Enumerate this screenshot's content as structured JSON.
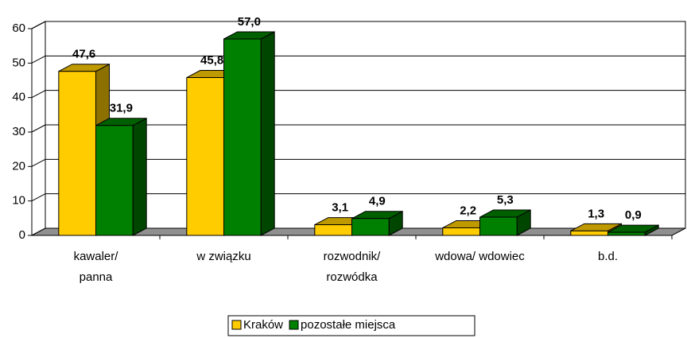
{
  "chart_data": {
    "type": "bar3d",
    "categories": [
      [
        "kawaler/",
        "panna"
      ],
      [
        "w związku"
      ],
      [
        "rozwodnik/",
        "rozwódka"
      ],
      [
        "wdowa/  wdowiec"
      ],
      [
        "b.d."
      ]
    ],
    "series": [
      {
        "name": "Kraków",
        "color": "#ffcc00",
        "values": [
          47.6,
          45.8,
          3.1,
          2.2,
          1.3
        ],
        "value_labels": [
          "47,6",
          "45,8",
          "3,1",
          "2,2",
          "1,3"
        ]
      },
      {
        "name": "pozostałe miejsca",
        "color": "#008000",
        "values": [
          31.9,
          57.0,
          4.9,
          5.3,
          0.9
        ],
        "value_labels": [
          "31,9",
          "57,0",
          "4,9",
          "5,3",
          "0,9"
        ]
      }
    ],
    "ylim": [
      0,
      60
    ],
    "yticks": [
      0,
      10,
      20,
      30,
      40,
      50,
      60
    ],
    "grid": true,
    "legend": "bottom"
  }
}
